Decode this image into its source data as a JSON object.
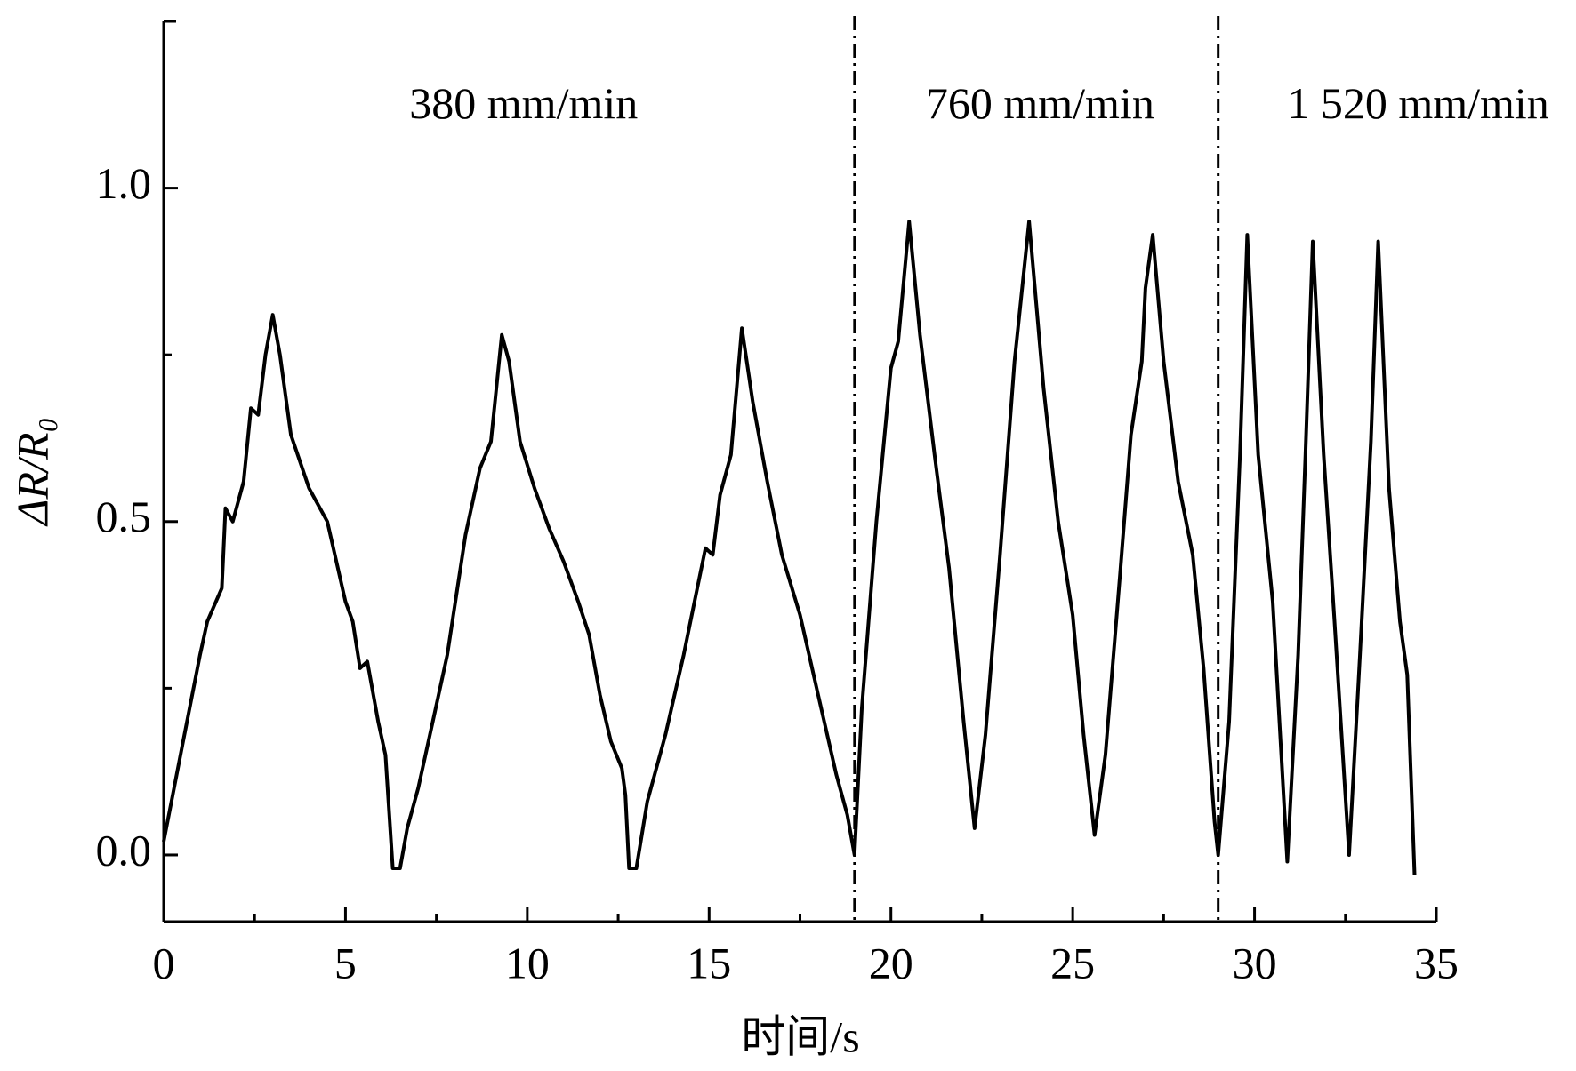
{
  "chart_data": {
    "type": "line",
    "xlabel": "时间/s",
    "ylabel": "ΔR/R₀",
    "xlim": [
      0,
      35
    ],
    "ylim": [
      -0.1,
      1.25
    ],
    "xticks": [
      0,
      5,
      10,
      15,
      20,
      25,
      30,
      35
    ],
    "yticks": [
      {
        "value": 0,
        "label": "0.0"
      },
      {
        "value": 0.5,
        "label": "0.5"
      },
      {
        "value": 1,
        "label": "1.0"
      }
    ],
    "vlines": [
      19,
      29
    ],
    "annotations": [
      {
        "text": "380 mm/min",
        "x": 9.9,
        "y": 1.12
      },
      {
        "text": "760 mm/min",
        "x": 24.1,
        "y": 1.12
      },
      {
        "text": "1 520 mm/min",
        "x": 34.5,
        "y": 1.12
      }
    ],
    "series": [
      {
        "color": "#000000",
        "x": [
          0,
          0.5,
          1.0,
          1.2,
          1.6,
          1.7,
          1.9,
          2.2,
          2.4,
          2.6,
          2.8,
          3.0,
          3.2,
          3.5,
          4.0,
          4.5,
          5.0,
          5.2,
          5.4,
          5.6,
          5.9,
          6.1,
          6.3,
          6.5,
          6.7,
          7.0,
          7.4,
          7.8,
          8.3,
          8.7,
          9.0,
          9.3,
          9.5,
          9.8,
          10.2,
          10.6,
          11.0,
          11.4,
          11.7,
          12.0,
          12.3,
          12.6,
          12.7,
          12.8,
          13.0,
          13.3,
          13.8,
          14.3,
          14.6,
          14.9,
          15.1,
          15.3,
          15.6,
          15.9,
          16.2,
          16.6,
          17.0,
          17.5,
          18.0,
          18.5,
          18.8,
          19.0,
          19.2,
          19.6,
          20.0,
          20.2,
          20.5,
          20.8,
          21.2,
          21.6,
          22.0,
          22.3,
          22.6,
          23.0,
          23.4,
          23.8,
          24.2,
          24.6,
          25.0,
          25.3,
          25.6,
          25.9,
          26.3,
          26.6,
          26.9,
          27.0,
          27.2,
          27.5,
          27.9,
          28.3,
          28.6,
          28.9,
          29.0,
          29.3,
          29.6,
          29.8,
          30.1,
          30.5,
          30.9,
          31.2,
          31.4,
          31.6,
          31.9,
          32.2,
          32.6,
          32.9,
          33.2,
          33.4,
          33.7,
          34.0,
          34.2,
          34.4
        ],
        "values": [
          0.02,
          0.16,
          0.3,
          0.35,
          0.4,
          0.52,
          0.5,
          0.56,
          0.67,
          0.66,
          0.75,
          0.81,
          0.75,
          0.63,
          0.55,
          0.5,
          0.38,
          0.35,
          0.28,
          0.29,
          0.2,
          0.15,
          -0.02,
          -0.02,
          0.04,
          0.1,
          0.2,
          0.3,
          0.48,
          0.58,
          0.62,
          0.78,
          0.74,
          0.62,
          0.55,
          0.49,
          0.44,
          0.38,
          0.33,
          0.24,
          0.17,
          0.13,
          0.09,
          -0.02,
          -0.02,
          0.08,
          0.18,
          0.3,
          0.38,
          0.46,
          0.45,
          0.54,
          0.6,
          0.79,
          0.68,
          0.56,
          0.45,
          0.36,
          0.24,
          0.12,
          0.06,
          0.0,
          0.22,
          0.5,
          0.73,
          0.77,
          0.95,
          0.78,
          0.6,
          0.43,
          0.2,
          0.04,
          0.18,
          0.45,
          0.74,
          0.95,
          0.7,
          0.5,
          0.36,
          0.18,
          0.03,
          0.15,
          0.42,
          0.63,
          0.74,
          0.85,
          0.93,
          0.74,
          0.56,
          0.45,
          0.28,
          0.05,
          0.0,
          0.2,
          0.6,
          0.93,
          0.6,
          0.38,
          -0.01,
          0.3,
          0.6,
          0.92,
          0.6,
          0.35,
          0.0,
          0.3,
          0.62,
          0.92,
          0.55,
          0.35,
          0.27,
          -0.03
        ]
      }
    ]
  }
}
